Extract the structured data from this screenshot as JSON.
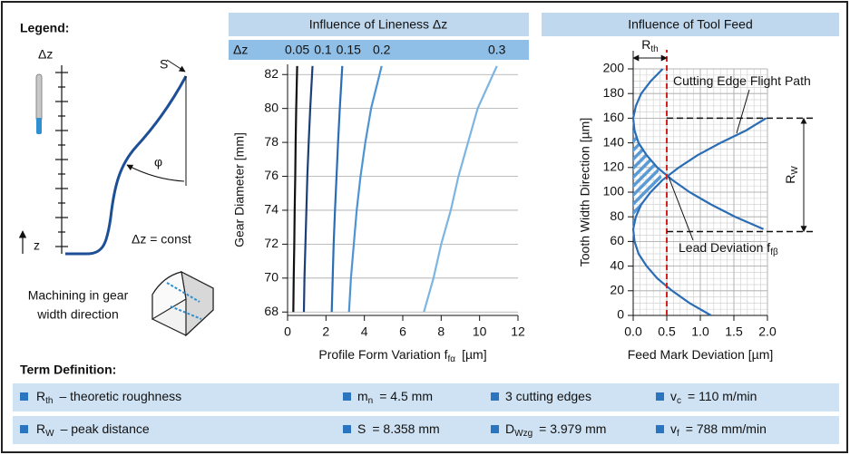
{
  "legend": {
    "title": "Legend:",
    "dz": "Δz",
    "s": "S",
    "phi": "φ",
    "z": "z",
    "dz_const": "Δz = const",
    "machining": [
      "Machining in gear",
      "width direction"
    ]
  },
  "chart_data": [
    {
      "type": "line",
      "orientation": "vertical",
      "title": "Influence of Lineness Δz",
      "legend_title": "Δz",
      "xlabel": {
        "main": "Profile Form Variation f",
        "sub": "fα",
        "rest": "[µm]"
      },
      "ylabel": "Gear Diameter [mm]",
      "xlim": [
        0,
        12
      ],
      "xticks": [
        0,
        2,
        4,
        6,
        8,
        10,
        12
      ],
      "ylim": [
        67.8,
        82.6
      ],
      "yticks": [
        68,
        70,
        72,
        74,
        76,
        78,
        80,
        82
      ],
      "grid": "y",
      "y": [
        68,
        70,
        72,
        74,
        76,
        78,
        80,
        82.5
      ],
      "series": [
        {
          "name": "0.05",
          "color": "#111111",
          "values": [
            0.3,
            0.32,
            0.35,
            0.37,
            0.4,
            0.42,
            0.45,
            0.5
          ]
        },
        {
          "name": "0.1",
          "color": "#1d3f78",
          "values": [
            0.85,
            0.88,
            0.93,
            0.98,
            1.03,
            1.1,
            1.18,
            1.3
          ]
        },
        {
          "name": "0.15",
          "color": "#2a6db5",
          "values": [
            2.3,
            2.35,
            2.4,
            2.47,
            2.55,
            2.63,
            2.72,
            2.85
          ]
        },
        {
          "name": "0.2",
          "color": "#4f94d2",
          "values": [
            3.2,
            3.3,
            3.45,
            3.6,
            3.8,
            4.05,
            4.35,
            4.9
          ]
        },
        {
          "name": "0.3",
          "color": "#7db5e2",
          "values": [
            7.1,
            7.6,
            8.0,
            8.5,
            8.9,
            9.4,
            9.9,
            10.9
          ]
        }
      ]
    },
    {
      "type": "line",
      "orientation": "vertical",
      "title": "Influence of Tool Feed",
      "xlabel": {
        "main": "Feed Mark Deviation [µm]"
      },
      "ylabel": "Tooth Width Direction [µm]",
      "xlim": [
        0,
        2
      ],
      "xticks": [
        {
          "value": 0,
          "label": "0.0"
        },
        0.5,
        {
          "value": 1,
          "label": "1.0"
        },
        1.5,
        {
          "value": 2,
          "label": "2.0"
        }
      ],
      "ylim": [
        0,
        200
      ],
      "yticks": [
        0,
        20,
        40,
        60,
        80,
        100,
        120,
        140,
        160,
        180,
        200
      ],
      "grid": "both",
      "minor_grid": {
        "x": 0.1,
        "y": 5
      },
      "y": [
        0,
        10,
        20,
        30,
        40,
        50,
        60,
        70,
        80,
        90,
        100,
        110,
        120,
        130,
        140,
        150,
        160,
        170,
        180,
        190,
        200
      ],
      "series": [
        {
          "color": "#2a6db5",
          "values": [
            null,
            null,
            null,
            null,
            null,
            null,
            null,
            1.94,
            1.52,
            1.16,
            0.84,
            0.58,
            0.36,
            0.2,
            0.08,
            0.02,
            0.0,
            0.04,
            0.12,
            0.26,
            0.44
          ]
        },
        {
          "color": "#2a6db5",
          "values": [
            1.16,
            0.84,
            0.58,
            0.36,
            0.2,
            0.08,
            0.02,
            0.0,
            0.04,
            0.12,
            0.26,
            0.44,
            0.68,
            0.96,
            1.3,
            1.68,
            1.98,
            null,
            null,
            null,
            null
          ]
        }
      ],
      "r_th": {
        "value": 0.5,
        "label": {
          "main": "R",
          "sub": "th"
        }
      },
      "r_w": {
        "values": [
          68,
          160
        ],
        "label": {
          "main": "R",
          "sub": "W"
        }
      },
      "annotations": [
        {
          "main": "Cutting Edge Flight Path"
        },
        {
          "main": "Lead Deviation f",
          "sub": "fβ"
        }
      ]
    }
  ],
  "terms": {
    "title": "Term Definition:",
    "rows": [
      [
        {
          "main": "R",
          "sub": "th",
          "rest": "– theoretic roughness"
        },
        {
          "main": "m",
          "sub": "n",
          "rest": "= 4.5 mm"
        },
        {
          "main": "3 cutting edges"
        },
        {
          "main": "v",
          "sub": "c",
          "rest": "= 110 m/min"
        }
      ],
      [
        {
          "main": "R",
          "sub": "W",
          "rest": "– peak distance"
        },
        {
          "main": "S",
          "rest": "= 8.358 mm"
        },
        {
          "main": "D",
          "sub": "Wzg",
          "rest": "= 3.979 mm"
        },
        {
          "main": "v",
          "sub": "f",
          "rest": "= 788 mm/min"
        }
      ]
    ]
  }
}
